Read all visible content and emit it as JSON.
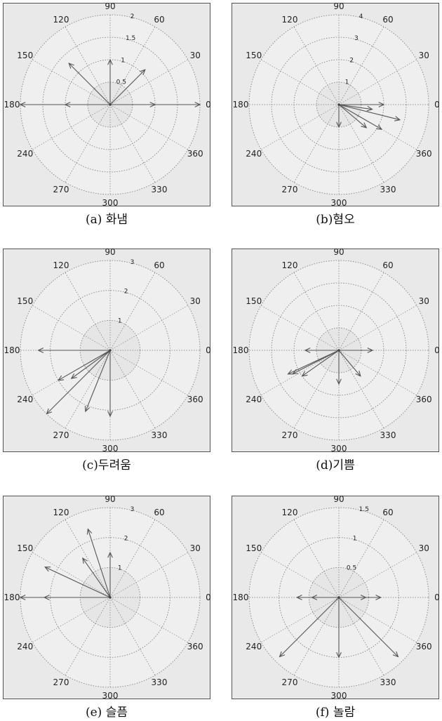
{
  "angle_labels": [
    "90",
    "60",
    "30",
    "0",
    "360",
    "330",
    "300",
    "270",
    "240",
    "180",
    "150",
    "120"
  ],
  "chart_data": [
    {
      "type": "polar",
      "caption": "(a) 화냄",
      "rmax": 2,
      "ring_values": [
        0.5,
        1,
        1.5,
        2
      ],
      "ring_labels": [
        "0.5",
        "1",
        "1.5",
        "2"
      ],
      "vectors": [
        {
          "theta": 0,
          "r": 2.0,
          "tick": 1.0
        },
        {
          "theta": 180,
          "r": 2.0,
          "tick": 1.0
        },
        {
          "theta": 90,
          "r": 1.0
        },
        {
          "theta": 45,
          "r": 1.1
        },
        {
          "theta": 135,
          "r": 1.3
        }
      ]
    },
    {
      "type": "polar",
      "caption": "(b)혐오",
      "rmax": 4,
      "ring_values": [
        1,
        2,
        3,
        4
      ],
      "ring_labels": [
        "1",
        "2",
        "3",
        "4"
      ],
      "vectors": [
        {
          "theta": 0,
          "r": 2.0
        },
        {
          "theta": -8,
          "r": 1.5
        },
        {
          "theta": -14,
          "r": 2.8
        },
        {
          "theta": -30,
          "r": 2.2
        },
        {
          "theta": -40,
          "r": 1.6
        },
        {
          "theta": -90,
          "r": 1.0
        }
      ]
    },
    {
      "type": "polar",
      "caption": "(c)두려움",
      "rmax": 3,
      "ring_values": [
        1,
        2,
        3
      ],
      "ring_labels": [
        "1",
        "2",
        "3"
      ],
      "vectors": [
        {
          "theta": 180,
          "r": 2.4
        },
        {
          "theta": 210,
          "r": 2.0
        },
        {
          "theta": 216,
          "r": 1.6
        },
        {
          "theta": 225,
          "r": 3.0
        },
        {
          "theta": 248,
          "r": 2.2
        },
        {
          "theta": 270,
          "r": 2.2
        }
      ]
    },
    {
      "type": "polar",
      "caption": "(d)기쁨",
      "rmax": 4,
      "ring_values": [
        1,
        2,
        3,
        4
      ],
      "ring_labels": [
        "",
        "",
        "",
        ""
      ],
      "vectors": [
        {
          "theta": 0,
          "r": 1.5
        },
        {
          "theta": 180,
          "r": 1.5
        },
        {
          "theta": 205,
          "r": 2.5
        },
        {
          "theta": 207,
          "r": 2.3
        },
        {
          "theta": 215,
          "r": 2.0
        },
        {
          "theta": 270,
          "r": 1.5
        },
        {
          "theta": 310,
          "r": 1.5
        }
      ]
    },
    {
      "type": "polar",
      "caption": "(e) 슬픔",
      "rmax": 3,
      "ring_values": [
        1,
        2,
        3
      ],
      "ring_labels": [
        "1",
        "2",
        "3"
      ],
      "vectors": [
        {
          "theta": 90,
          "r": 1.5
        },
        {
          "theta": 108,
          "r": 2.4
        },
        {
          "theta": 125,
          "r": 1.6
        },
        {
          "theta": 155,
          "r": 2.4
        },
        {
          "theta": 180,
          "r": 3.0,
          "tick": 2.2
        }
      ]
    },
    {
      "type": "polar",
      "caption": "(f) 놀람",
      "rmax": 1.5,
      "ring_values": [
        0.5,
        1,
        1.5
      ],
      "ring_labels": [
        "0.5",
        "1",
        "1.5"
      ],
      "vectors": [
        {
          "theta": 0,
          "r": 0.7,
          "tick": 0.45
        },
        {
          "theta": 180,
          "r": 0.7,
          "tick": 0.45
        },
        {
          "theta": 225,
          "r": 1.4
        },
        {
          "theta": 270,
          "r": 1.0
        },
        {
          "theta": 315,
          "r": 1.4
        }
      ]
    }
  ]
}
